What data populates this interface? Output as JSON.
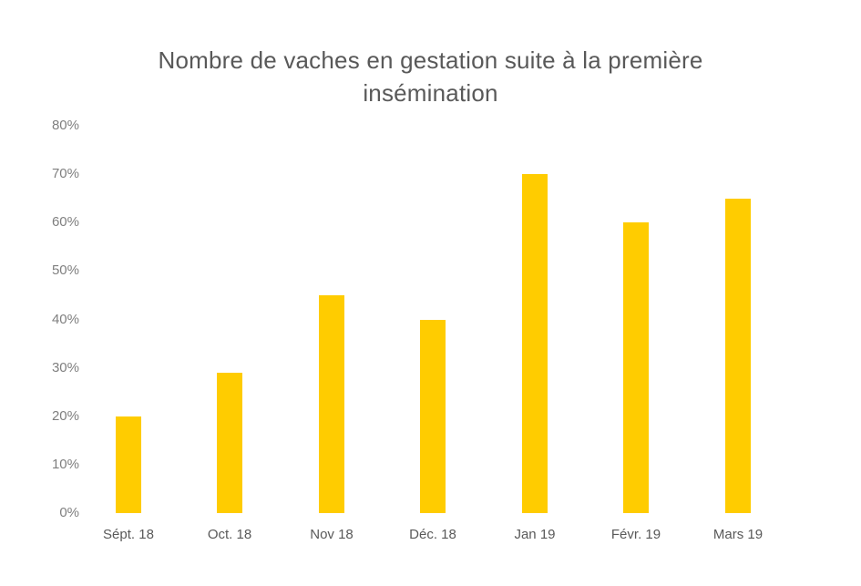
{
  "chart_data": {
    "type": "bar",
    "title": "Nombre de vaches en gestation suite à la première insémination",
    "title_lines": [
      "Nombre de vaches en gestation suite à la première",
      "insémination"
    ],
    "categories": [
      "Sépt. 18",
      "Oct. 18",
      "Nov 18",
      "Déc. 18",
      "Jan 19",
      "Févr. 19",
      "Mars 19"
    ],
    "values": [
      20,
      29,
      45,
      40,
      70,
      60,
      65
    ],
    "value_unit": "%",
    "xlabel": "",
    "ylabel": "",
    "ylim": [
      0,
      80
    ],
    "yticks": [
      "0%",
      "10%",
      "20%",
      "30%",
      "40%",
      "50%",
      "60%",
      "70%",
      "80%"
    ],
    "grid": false,
    "legend": null,
    "bar_color": "#FFCC00"
  }
}
